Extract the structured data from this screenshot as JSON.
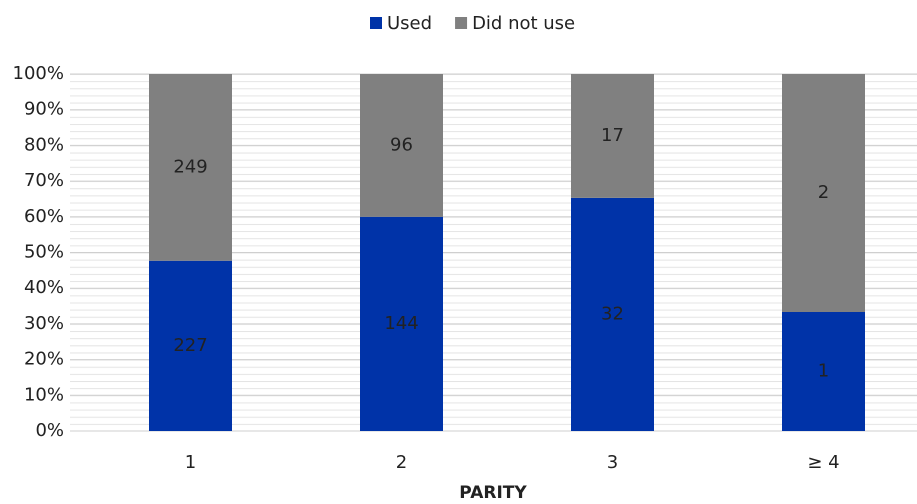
{
  "chart_data": {
    "type": "bar",
    "stacked": "percent",
    "x_label": "PARITY",
    "categories": [
      "1",
      "2",
      "3",
      "≥ 4"
    ],
    "series": [
      {
        "name": "Used",
        "color": "#0033a8",
        "values": [
          227,
          144,
          32,
          1
        ]
      },
      {
        "name": "Did not use",
        "color": "#808080",
        "values": [
          249,
          96,
          17,
          2
        ]
      }
    ],
    "ylim": [
      0,
      100
    ],
    "yticks": [
      {
        "value": 0,
        "label": "0%"
      },
      {
        "value": 10,
        "label": "10%"
      },
      {
        "value": 20,
        "label": "20%"
      },
      {
        "value": 30,
        "label": "30%"
      },
      {
        "value": 40,
        "label": "40%"
      },
      {
        "value": 50,
        "label": "50%"
      },
      {
        "value": 60,
        "label": "60%"
      },
      {
        "value": 70,
        "label": "70%"
      },
      {
        "value": 80,
        "label": "80%"
      },
      {
        "value": 90,
        "label": "90%"
      },
      {
        "value": 100,
        "label": "100%"
      }
    ],
    "grid": true,
    "legend": "top"
  }
}
